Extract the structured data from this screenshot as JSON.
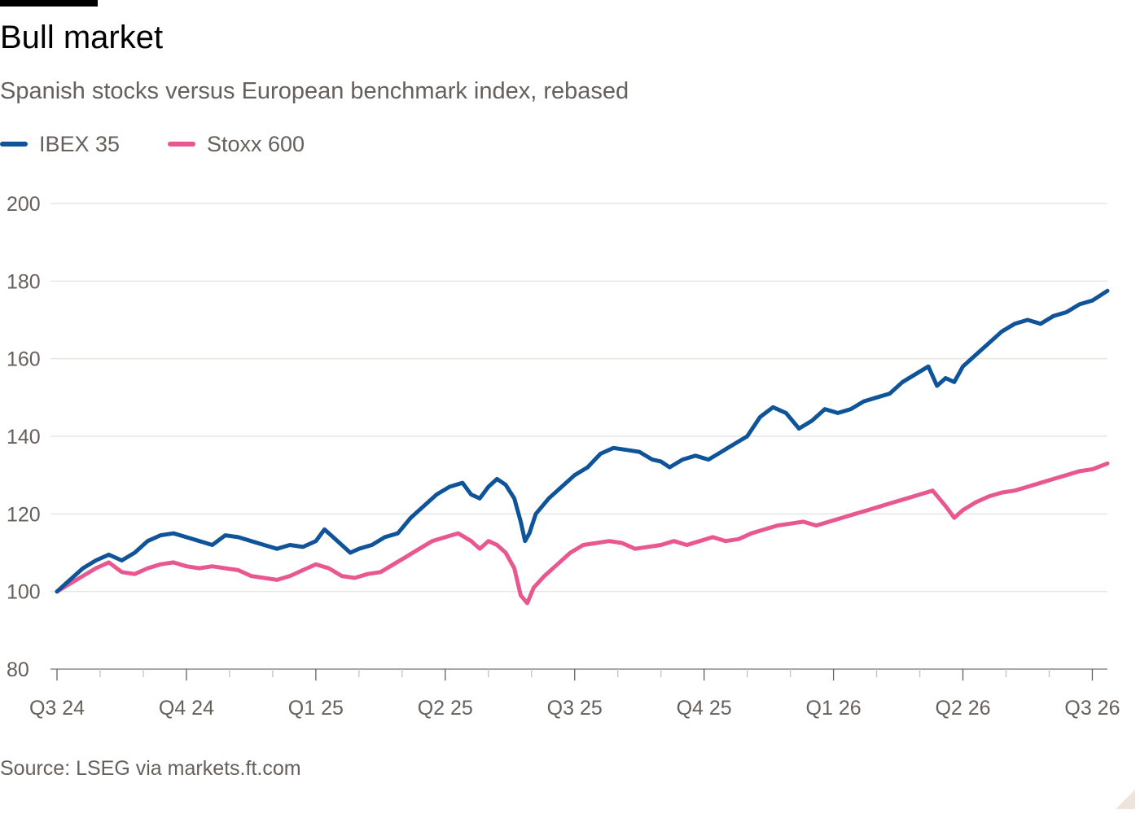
{
  "header": {
    "title": "Bull market",
    "subtitle": "Spanish stocks versus European benchmark index, rebased"
  },
  "footer": {
    "source": "Source: LSEG via markets.ft.com"
  },
  "colors": {
    "ibex": "#0f5499",
    "stoxx": "#e8578f",
    "grid": "#e9e5e1",
    "axis_text": "#66605c"
  },
  "chart_data": {
    "type": "line",
    "title": "Bull market",
    "subtitle": "Spanish stocks versus European benchmark index, rebased",
    "x_unit": "months since start of Q3 2024",
    "xlim": [
      0,
      24.35
    ],
    "ylim": [
      80,
      200
    ],
    "yticks": [
      80,
      100,
      120,
      140,
      160,
      180,
      200
    ],
    "xticks": [
      {
        "label": "Q3 24",
        "x": 0
      },
      {
        "label": "Q4 24",
        "x": 3
      },
      {
        "label": "Q1 25",
        "x": 6
      },
      {
        "label": "Q2 25",
        "x": 9
      },
      {
        "label": "Q3 25",
        "x": 12
      },
      {
        "label": "Q4 25",
        "x": 15
      },
      {
        "label": "Q1 26",
        "x": 18
      },
      {
        "label": "Q2 26",
        "x": 21
      },
      {
        "label": "Q3 26",
        "x": 24
      }
    ],
    "grid": true,
    "legend_position": "top-left",
    "source": "Source: LSEG via markets.ft.com",
    "series": [
      {
        "name": "IBEX 35",
        "color": "#0f5499",
        "points": [
          [
            0,
            100
          ],
          [
            0.3,
            103
          ],
          [
            0.6,
            106
          ],
          [
            0.9,
            108
          ],
          [
            1.2,
            109.5
          ],
          [
            1.5,
            108
          ],
          [
            1.8,
            110
          ],
          [
            2.1,
            113
          ],
          [
            2.4,
            114.5
          ],
          [
            2.7,
            115
          ],
          [
            3.0,
            114
          ],
          [
            3.3,
            113
          ],
          [
            3.6,
            112
          ],
          [
            3.9,
            114.5
          ],
          [
            4.2,
            114
          ],
          [
            4.5,
            113
          ],
          [
            4.8,
            112
          ],
          [
            5.1,
            111
          ],
          [
            5.4,
            112
          ],
          [
            5.7,
            111.5
          ],
          [
            6.0,
            113
          ],
          [
            6.2,
            116
          ],
          [
            6.4,
            114
          ],
          [
            6.6,
            112
          ],
          [
            6.8,
            110
          ],
          [
            7.0,
            111
          ],
          [
            7.3,
            112
          ],
          [
            7.6,
            114
          ],
          [
            7.9,
            115
          ],
          [
            8.2,
            119
          ],
          [
            8.5,
            122
          ],
          [
            8.8,
            125
          ],
          [
            9.1,
            127
          ],
          [
            9.4,
            128
          ],
          [
            9.6,
            125
          ],
          [
            9.8,
            124
          ],
          [
            10.0,
            127
          ],
          [
            10.2,
            129
          ],
          [
            10.4,
            127.5
          ],
          [
            10.6,
            124
          ],
          [
            10.75,
            118
          ],
          [
            10.85,
            113
          ],
          [
            10.95,
            115
          ],
          [
            11.1,
            120
          ],
          [
            11.4,
            124
          ],
          [
            11.7,
            127
          ],
          [
            12.0,
            130
          ],
          [
            12.3,
            132
          ],
          [
            12.6,
            135.5
          ],
          [
            12.9,
            137
          ],
          [
            13.2,
            136.5
          ],
          [
            13.5,
            136
          ],
          [
            13.8,
            134
          ],
          [
            14.0,
            133.5
          ],
          [
            14.2,
            132
          ],
          [
            14.5,
            134
          ],
          [
            14.8,
            135
          ],
          [
            15.1,
            134
          ],
          [
            15.4,
            136
          ],
          [
            15.7,
            138
          ],
          [
            16.0,
            140
          ],
          [
            16.3,
            145
          ],
          [
            16.6,
            147.5
          ],
          [
            16.9,
            146
          ],
          [
            17.2,
            142
          ],
          [
            17.5,
            144
          ],
          [
            17.8,
            147
          ],
          [
            18.1,
            146
          ],
          [
            18.4,
            147
          ],
          [
            18.7,
            149
          ],
          [
            19.0,
            150
          ],
          [
            19.3,
            151
          ],
          [
            19.6,
            154
          ],
          [
            19.9,
            156
          ],
          [
            20.2,
            158
          ],
          [
            20.4,
            153
          ],
          [
            20.6,
            155
          ],
          [
            20.8,
            154
          ],
          [
            21.0,
            158
          ],
          [
            21.3,
            161
          ],
          [
            21.6,
            164
          ],
          [
            21.9,
            167
          ],
          [
            22.2,
            169
          ],
          [
            22.5,
            170
          ],
          [
            22.8,
            169
          ],
          [
            23.1,
            171
          ],
          [
            23.4,
            172
          ],
          [
            23.7,
            174
          ],
          [
            24.0,
            175
          ],
          [
            24.35,
            177.5
          ]
        ]
      },
      {
        "name": "Stoxx 600",
        "color": "#e8578f",
        "points": [
          [
            0,
            100
          ],
          [
            0.3,
            102
          ],
          [
            0.6,
            104
          ],
          [
            0.9,
            106
          ],
          [
            1.2,
            107.5
          ],
          [
            1.5,
            105
          ],
          [
            1.8,
            104.5
          ],
          [
            2.1,
            106
          ],
          [
            2.4,
            107
          ],
          [
            2.7,
            107.5
          ],
          [
            3.0,
            106.5
          ],
          [
            3.3,
            106
          ],
          [
            3.6,
            106.5
          ],
          [
            3.9,
            106
          ],
          [
            4.2,
            105.5
          ],
          [
            4.5,
            104
          ],
          [
            4.8,
            103.5
          ],
          [
            5.1,
            103
          ],
          [
            5.4,
            104
          ],
          [
            5.7,
            105.5
          ],
          [
            6.0,
            107
          ],
          [
            6.3,
            106
          ],
          [
            6.6,
            104
          ],
          [
            6.9,
            103.5
          ],
          [
            7.2,
            104.5
          ],
          [
            7.5,
            105
          ],
          [
            7.8,
            107
          ],
          [
            8.1,
            109
          ],
          [
            8.4,
            111
          ],
          [
            8.7,
            113
          ],
          [
            9.0,
            114
          ],
          [
            9.3,
            115
          ],
          [
            9.6,
            113
          ],
          [
            9.8,
            111
          ],
          [
            10.0,
            113
          ],
          [
            10.2,
            112
          ],
          [
            10.4,
            110
          ],
          [
            10.6,
            106
          ],
          [
            10.75,
            99
          ],
          [
            10.9,
            97
          ],
          [
            11.05,
            101
          ],
          [
            11.3,
            104
          ],
          [
            11.6,
            107
          ],
          [
            11.9,
            110
          ],
          [
            12.2,
            112
          ],
          [
            12.5,
            112.5
          ],
          [
            12.8,
            113
          ],
          [
            13.1,
            112.5
          ],
          [
            13.4,
            111
          ],
          [
            13.7,
            111.5
          ],
          [
            14.0,
            112
          ],
          [
            14.3,
            113
          ],
          [
            14.6,
            112
          ],
          [
            14.9,
            113
          ],
          [
            15.2,
            114
          ],
          [
            15.5,
            113
          ],
          [
            15.8,
            113.5
          ],
          [
            16.1,
            115
          ],
          [
            16.4,
            116
          ],
          [
            16.7,
            117
          ],
          [
            17.0,
            117.5
          ],
          [
            17.3,
            118
          ],
          [
            17.6,
            117
          ],
          [
            17.9,
            118
          ],
          [
            18.2,
            119
          ],
          [
            18.5,
            120
          ],
          [
            18.8,
            121
          ],
          [
            19.1,
            122
          ],
          [
            19.4,
            123
          ],
          [
            19.7,
            124
          ],
          [
            20.0,
            125
          ],
          [
            20.3,
            126
          ],
          [
            20.6,
            122
          ],
          [
            20.8,
            119
          ],
          [
            21.0,
            121
          ],
          [
            21.3,
            123
          ],
          [
            21.6,
            124.5
          ],
          [
            21.9,
            125.5
          ],
          [
            22.2,
            126
          ],
          [
            22.5,
            127
          ],
          [
            22.8,
            128
          ],
          [
            23.1,
            129
          ],
          [
            23.4,
            130
          ],
          [
            23.7,
            131
          ],
          [
            24.0,
            131.5
          ],
          [
            24.35,
            133
          ]
        ]
      }
    ]
  }
}
